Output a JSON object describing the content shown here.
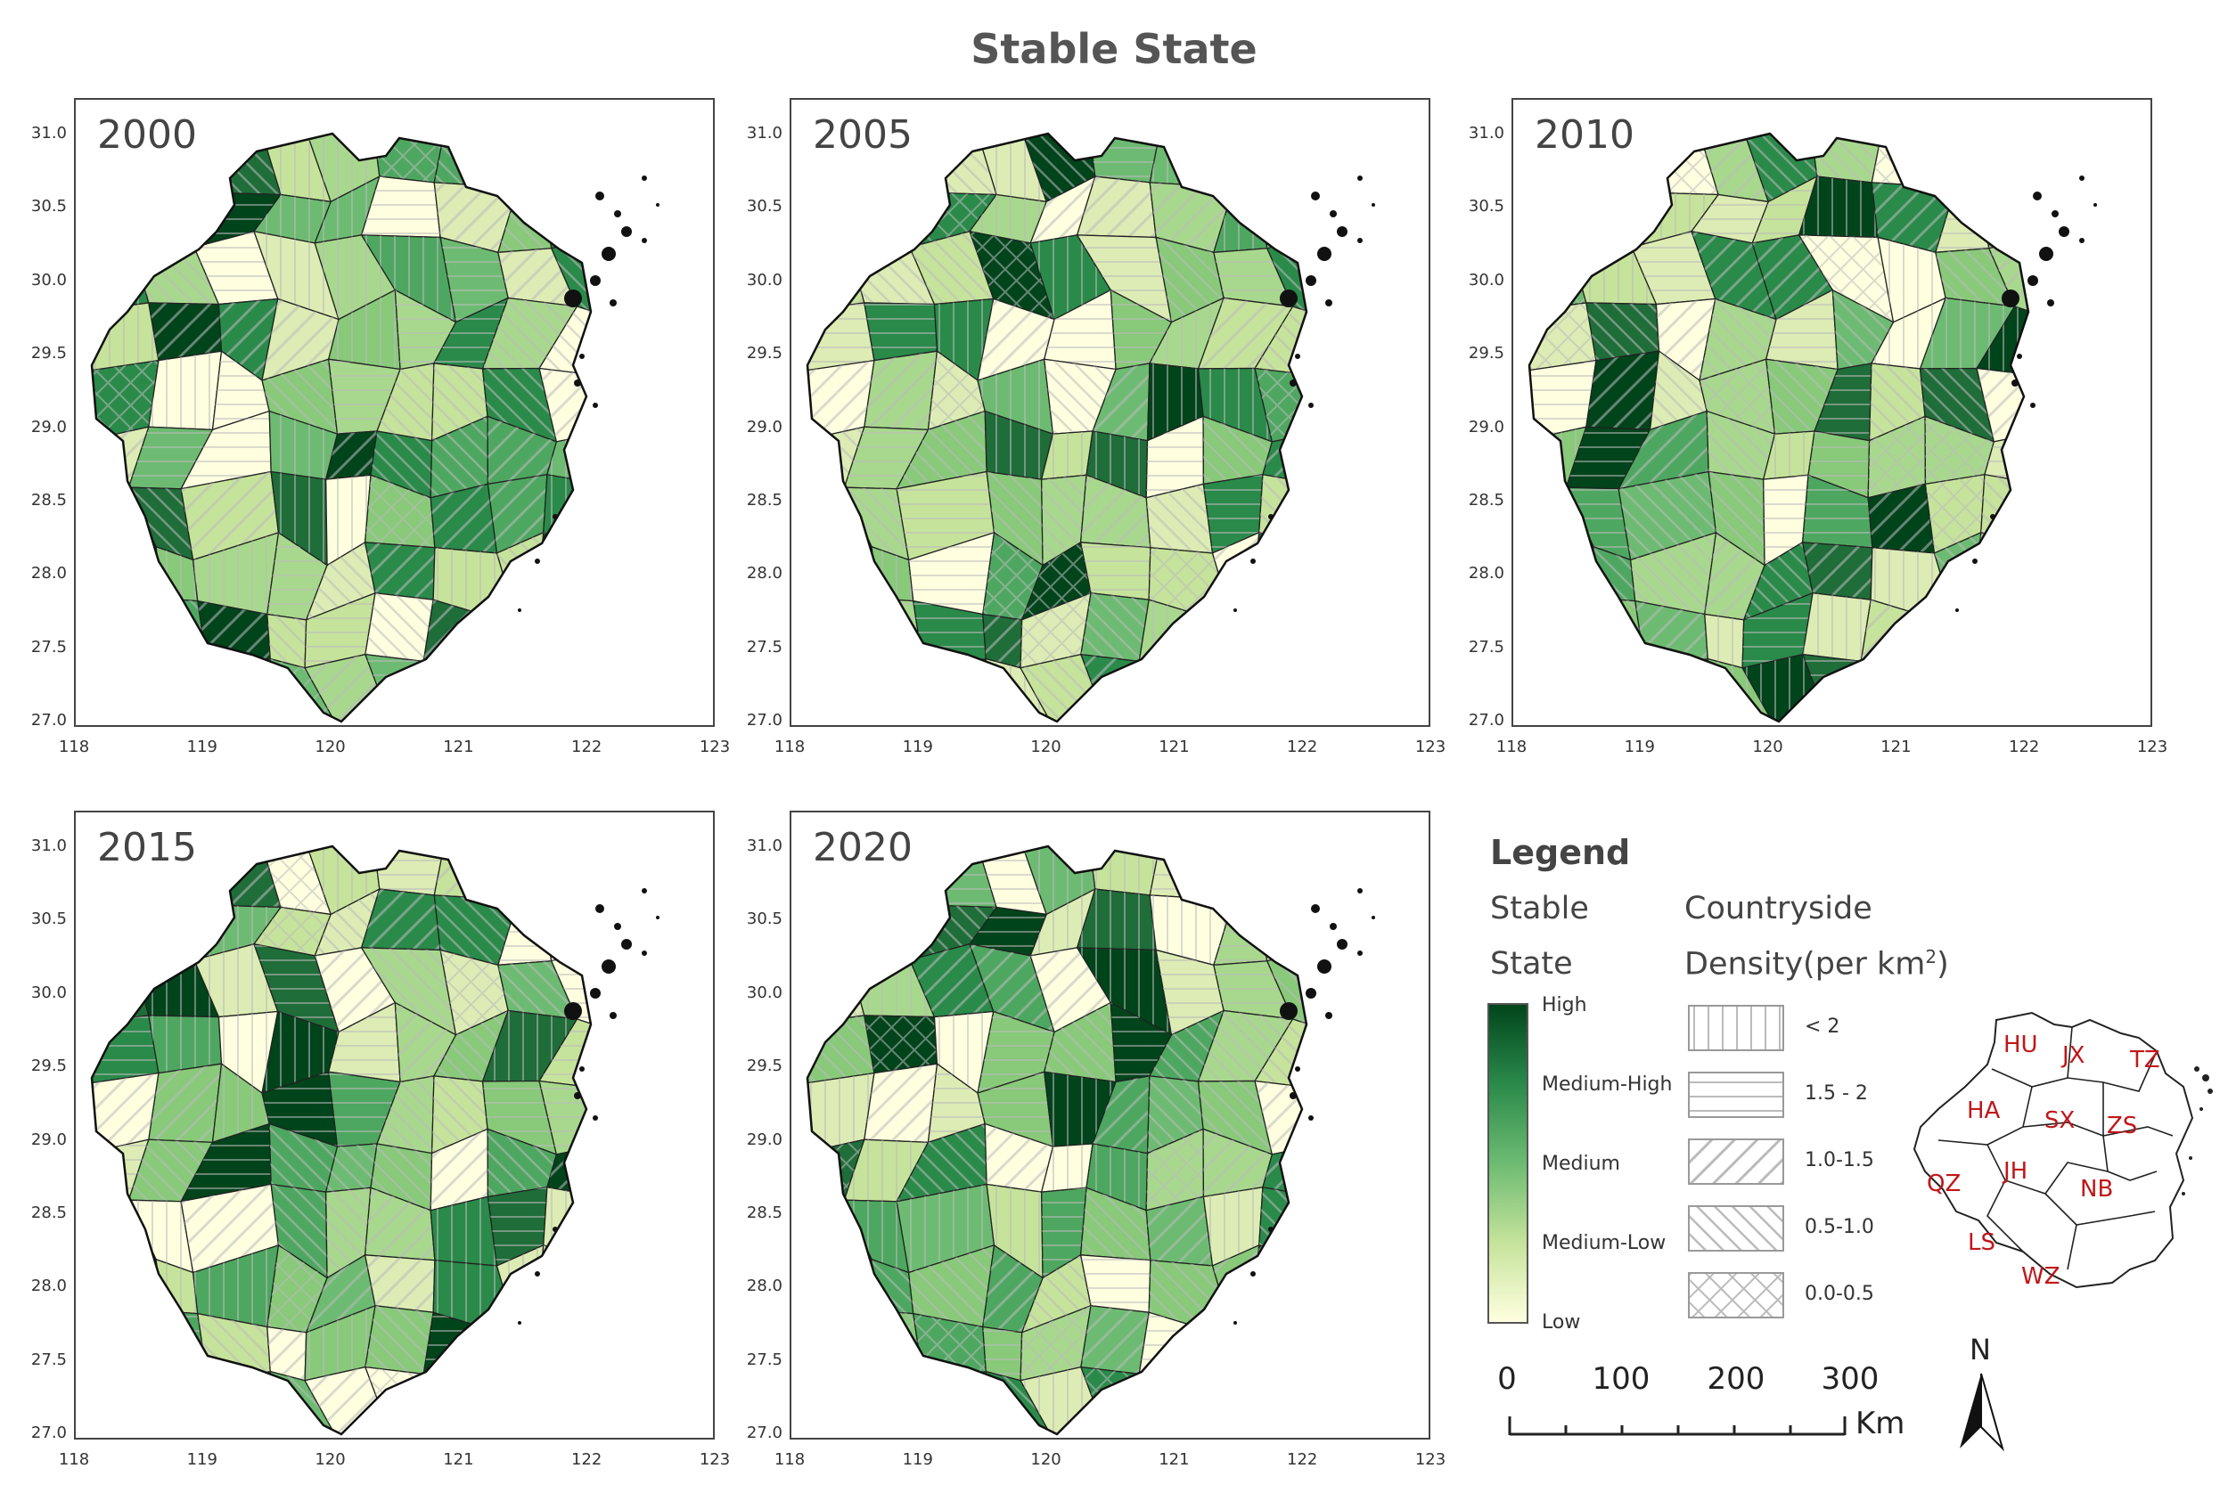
{
  "title": "Stable State",
  "axes": {
    "y_ticks": [
      "31.0",
      "30.5",
      "30.0",
      "29.5",
      "29.0",
      "28.5",
      "28.0",
      "27.5",
      "27.0"
    ],
    "x_ticks": [
      "118",
      "119",
      "120",
      "121",
      "122",
      "123"
    ]
  },
  "panels": [
    {
      "year": "2000"
    },
    {
      "year": "2005"
    },
    {
      "year": "2010"
    },
    {
      "year": "2015"
    },
    {
      "year": "2020"
    }
  ],
  "legend": {
    "title": "Legend",
    "stable_line1": "Stable",
    "stable_line2": "State",
    "density_line1": "Countryside",
    "density_line2": "Density(per km",
    "density_sup": "2",
    "density_close": ")",
    "colorbar": [
      "High",
      "Medium-High",
      "Medium",
      "Medium-Low",
      "Low"
    ],
    "hatch_classes": [
      "< 2",
      "1.5 - 2",
      "1.0-1.5",
      "0.5-1.0",
      "0.0-0.5"
    ]
  },
  "scale_bar": {
    "ticks": [
      "0",
      "100",
      "200",
      "300"
    ],
    "unit": "Km"
  },
  "north_label": "N",
  "inset_regions": [
    "HU",
    "JX",
    "TZ",
    "HA",
    "SX",
    "ZS",
    "QZ",
    "JH",
    "NB",
    "LS",
    "WZ"
  ],
  "colors": {
    "high": "#00441b",
    "medium_high": "#2a8a4a",
    "medium": "#6dbb72",
    "medium_low": "#c6e39b",
    "low": "#ffffe0",
    "region_label": "#c0171a"
  }
}
